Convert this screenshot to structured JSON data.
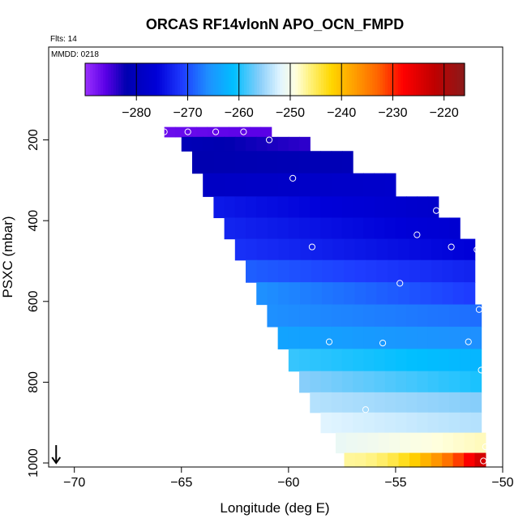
{
  "chart_data": {
    "type": "heatmap",
    "title": "ORCAS RF14vlonN APO_OCN_FMPD",
    "flights_label": "Flts: 14",
    "mmdd_label": "MMDD: 0218",
    "xlabel": "Longitude (deg E)",
    "ylabel": "PSXC (mbar)",
    "xlim": [
      -71.2,
      -50
    ],
    "ylim": [
      1010,
      -30
    ],
    "xticks": [
      -70,
      -65,
      -60,
      -55,
      -50
    ],
    "yticks": [
      200,
      400,
      600,
      800,
      1000
    ],
    "colorbar": {
      "range": [
        -290,
        -216
      ],
      "ticks": [
        -280,
        -270,
        -260,
        -250,
        -240,
        -230,
        -220
      ]
    },
    "colormap": [
      [
        -290,
        "#9b30ff"
      ],
      [
        -286,
        "#5a00e6"
      ],
      [
        -282,
        "#0000b0"
      ],
      [
        -276,
        "#0000d8"
      ],
      [
        -271,
        "#1e3cff"
      ],
      [
        -266,
        "#1e90ff"
      ],
      [
        -261,
        "#00bfff"
      ],
      [
        -256,
        "#87cefa"
      ],
      [
        -252,
        "#e0f4ff"
      ],
      [
        -249,
        "#ffffe0"
      ],
      [
        -246,
        "#fff176"
      ],
      [
        -242,
        "#ffd700"
      ],
      [
        -238,
        "#ffa500"
      ],
      [
        -233,
        "#ff6600"
      ],
      [
        -228,
        "#ff0000"
      ],
      [
        -222,
        "#c00000"
      ],
      [
        -216,
        "#8b1a1a"
      ]
    ],
    "rows": [
      {
        "p": 180,
        "lon_start": -65.8,
        "lon_end": -60.8,
        "v_start": -287,
        "v_end": -286
      },
      {
        "p": 205,
        "lon_start": -65.0,
        "lon_end": -59.0,
        "v_start": -281,
        "v_end": -284
      },
      {
        "p": 250,
        "lon_start": -64.5,
        "lon_end": -57.0,
        "v_start": -282,
        "v_end": -281
      },
      {
        "p": 315,
        "lon_start": -64.0,
        "lon_end": -55.0,
        "v_start": -279,
        "v_end": -278
      },
      {
        "p": 365,
        "lon_start": -63.5,
        "lon_end": -53.0,
        "v_start": -274,
        "v_end": -278
      },
      {
        "p": 420,
        "lon_start": -63.0,
        "lon_end": -52.0,
        "v_start": -273,
        "v_end": -277
      },
      {
        "p": 470,
        "lon_start": -62.5,
        "lon_end": -51.3,
        "v_start": -272,
        "v_end": -276
      },
      {
        "p": 525,
        "lon_start": -62.0,
        "lon_end": -51.3,
        "v_start": -269,
        "v_end": -273
      },
      {
        "p": 580,
        "lon_start": -61.5,
        "lon_end": -51.3,
        "v_start": -266,
        "v_end": -271
      },
      {
        "p": 635,
        "lon_start": -61.0,
        "lon_end": -51.0,
        "v_start": -266,
        "v_end": -268
      },
      {
        "p": 690,
        "lon_start": -60.5,
        "lon_end": -51.0,
        "v_start": -264,
        "v_end": -266
      },
      {
        "p": 745,
        "lon_start": -60.0,
        "lon_end": -51.0,
        "v_start": -259,
        "v_end": -262
      },
      {
        "p": 800,
        "lon_start": -59.5,
        "lon_end": -51.0,
        "v_start": -256,
        "v_end": -260
      },
      {
        "p": 850,
        "lon_start": -59.0,
        "lon_end": -51.0,
        "v_start": -254,
        "v_end": -256
      },
      {
        "p": 900,
        "lon_start": -58.5,
        "lon_end": -51.0,
        "v_start": -252,
        "v_end": -254
      },
      {
        "p": 950,
        "lon_start": -57.8,
        "lon_end": -50.8,
        "v_start": -251,
        "v_end": -248
      },
      {
        "p": 1000,
        "lon_start": -57.4,
        "lon_end": -50.8,
        "v_start": -247,
        "v_end": -224
      }
    ],
    "observations": [
      {
        "lon": -65.8,
        "p": 180
      },
      {
        "lon": -64.7,
        "p": 180
      },
      {
        "lon": -63.4,
        "p": 180
      },
      {
        "lon": -62.1,
        "p": 180
      },
      {
        "lon": -60.9,
        "p": 200
      },
      {
        "lon": -59.8,
        "p": 295
      },
      {
        "lon": -53.1,
        "p": 375
      },
      {
        "lon": -54.0,
        "p": 435
      },
      {
        "lon": -58.9,
        "p": 465
      },
      {
        "lon": -52.4,
        "p": 465
      },
      {
        "lon": -51.2,
        "p": 472
      },
      {
        "lon": -54.8,
        "p": 555
      },
      {
        "lon": -51.1,
        "p": 620
      },
      {
        "lon": -58.1,
        "p": 700
      },
      {
        "lon": -55.6,
        "p": 703
      },
      {
        "lon": -51.6,
        "p": 700
      },
      {
        "lon": -51.0,
        "p": 770
      },
      {
        "lon": -56.4,
        "p": 868
      },
      {
        "lon": -50.8,
        "p": 960
      },
      {
        "lon": -50.9,
        "p": 995
      }
    ],
    "arrow_marker": {
      "lon": -70.85,
      "p": 1000
    }
  }
}
